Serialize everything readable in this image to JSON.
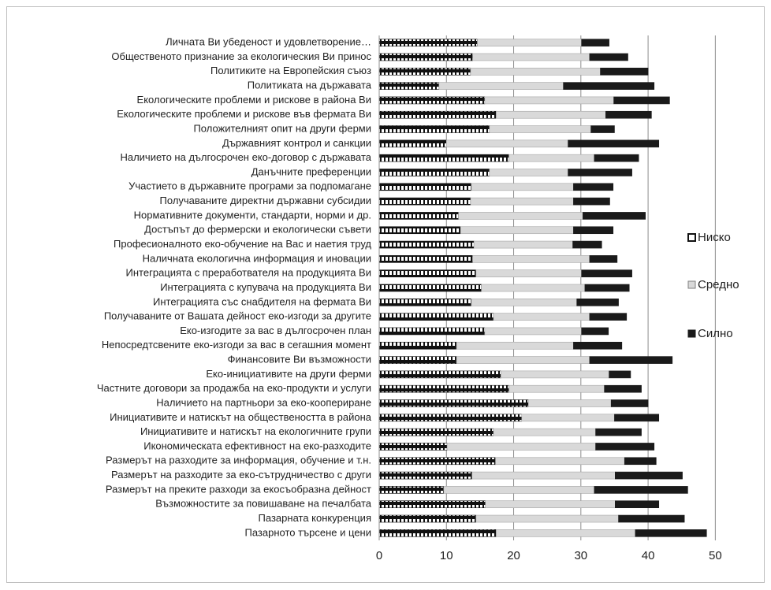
{
  "chart_data": {
    "type": "stacked-barh",
    "categories": [
      "Личната Ви убеденост и удовлетворение…",
      "Общественото признание за екологическия Ви принос",
      "Политиките на Европейския съюз",
      "Политиката на държавата",
      "Екологическите проблеми и рискове в района Ви",
      "Екологическите проблеми и рискове във фермата Ви",
      "Положителният опит на други ферми",
      "Държавният контрол и санкции",
      "Наличието на дългосрочен еко-договор с държавата",
      "Данъчните преференции",
      "Участието в държавните програми за подпомагане",
      "Получаваните директни държавни субсидии",
      "Нормативните документи, стандарти, норми и др.",
      "Достъпът до фермерски и екологически съвети",
      "Професионалното еко-обучение на Вас и наетия труд",
      "Наличната екологична информация и иновации",
      "Интеграцията с преработвателя на продукцията Ви",
      "Интеграцията с купувача на продукцията Ви",
      "Интеграцията със снабдителя на фермата Ви",
      "Получаваните от Вашата дейност еко-изгоди за другите",
      "Еко-изгодите за вас в дългосрочен план",
      "Непосредтсвените еко-изгоди за вас в сегашния момент",
      "Финансовите Ви възможности",
      "Еко-инициативите на други ферми",
      "Частните договори за продажба на еко-продукти и услуги",
      "Наличието на партньори за еко-коопериране",
      "Инициативите и натискът на обществеността в района",
      "Инициативите и натискът на екологичните групи",
      "Икономическата ефективност на еко-разходите",
      "Размерът на разходите за информация, обучение и т.н.",
      "Размерът на разходите за еко-сътрудничество с други",
      "Размерът на преките разходи за екосъобразна дейност",
      "Възможностите за повишаване на печалбата",
      "Пазарната конкуренция",
      "Пазарното търсене и цени"
    ],
    "series": [
      {
        "name": "Ниско",
        "color": "#ffffff",
        "pattern": "vertical-stripes",
        "values": [
          14.6,
          13.9,
          13.6,
          8.9,
          15.7,
          17.4,
          16.4,
          10.0,
          19.3,
          16.4,
          13.7,
          13.6,
          11.8,
          12.1,
          14.1,
          13.9,
          14.4,
          15.2,
          13.7,
          17.0,
          15.7,
          11.5,
          11.5,
          18.1,
          19.3,
          22.2,
          21.2,
          17.0,
          10.1,
          17.3,
          13.8,
          9.6,
          15.8,
          14.4,
          17.4
        ]
      },
      {
        "name": "Средно",
        "color": "#d9d9d9",
        "values": [
          15.5,
          17.4,
          19.3,
          18.5,
          19.2,
          16.3,
          15.1,
          18.1,
          12.7,
          11.7,
          15.2,
          15.3,
          18.5,
          16.8,
          14.7,
          17.4,
          15.7,
          15.4,
          15.7,
          14.3,
          14.4,
          17.4,
          19.8,
          16.1,
          14.2,
          12.3,
          13.8,
          15.2,
          22.1,
          19.2,
          21.3,
          22.4,
          19.3,
          21.2,
          20.7
        ]
      },
      {
        "name": "Силно",
        "color": "#1a1a1a",
        "values": [
          4.1,
          5.7,
          7.1,
          13.5,
          8.3,
          6.8,
          3.5,
          13.5,
          6.6,
          9.5,
          5.9,
          5.4,
          9.3,
          5.9,
          4.3,
          4.1,
          7.5,
          6.6,
          6.2,
          5.5,
          4.0,
          7.2,
          12.3,
          3.2,
          5.5,
          5.5,
          6.6,
          6.8,
          8.7,
          4.7,
          10.0,
          13.9,
          6.5,
          9.8,
          10.6
        ]
      }
    ],
    "xlim": [
      0,
      55
    ],
    "xticks": [
      0,
      10,
      20,
      30,
      40,
      50
    ],
    "grid": true,
    "legend": "right"
  }
}
